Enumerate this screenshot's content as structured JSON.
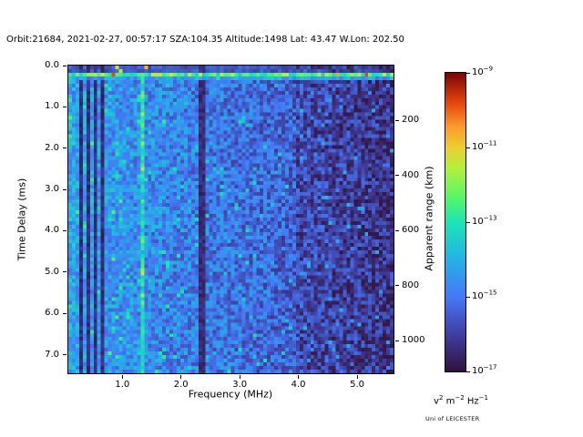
{
  "window": {
    "background": "#ffffff"
  },
  "chart_data": {
    "type": "heatmap",
    "title": "Orbit:21684, 2021-02-27, 00:57:17 SZA:104.35 Altitude:1498 Lat: 43.47 W.Lon: 202.50",
    "xlabel": "Frequency (MHz)",
    "ylabel_left": "Time Delay (ms)",
    "ylabel_right": "Apparent range (km)",
    "x_range_mhz": [
      0.08,
      5.62
    ],
    "y_range_ms": [
      0.0,
      7.45
    ],
    "x_ticks_mhz": [
      1.0,
      2.0,
      3.0,
      4.0,
      5.0
    ],
    "y_ticks_ms": [
      0.0,
      1.0,
      2.0,
      3.0,
      4.0,
      5.0,
      6.0,
      7.0
    ],
    "right_axis": {
      "ticks_km": [
        200,
        400,
        600,
        800,
        1000
      ],
      "km_per_ms": 150
    },
    "colorbar": {
      "scale": "log",
      "min": "1e-17",
      "max": "1e-9",
      "tick_exponents": [
        -9,
        -11,
        -13,
        -15,
        -17
      ],
      "unit_segments": [
        {
          "t": "v"
        },
        {
          "sup": "2"
        },
        {
          "t": " m"
        },
        {
          "sup": "−2"
        },
        {
          "t": " Hz"
        },
        {
          "sup": "−1"
        }
      ],
      "colormap": "turbo",
      "colormap_stops": [
        [
          0.0,
          "#30123b"
        ],
        [
          0.12,
          "#3f3d9c"
        ],
        [
          0.25,
          "#4479f7"
        ],
        [
          0.38,
          "#23b4e3"
        ],
        [
          0.5,
          "#1be5b5"
        ],
        [
          0.58,
          "#55f56a"
        ],
        [
          0.68,
          "#b4f03b"
        ],
        [
          0.75,
          "#e9cf33"
        ],
        [
          0.82,
          "#fb9b2e"
        ],
        [
          0.9,
          "#e4460b"
        ],
        [
          1.0,
          "#7a0403"
        ]
      ]
    },
    "heatmap": {
      "nx": 90,
      "ny": 85,
      "seed": 7,
      "description": "Radar-sounder ionogram noise speckle: blue speckle brighter at low frequency, darker navy above ~4 MHz; bright cyan horizontal band near 0.22 ms delay; dark vertical interference lines near 0.28, 0.38, 0.54, 0.66 and 2.38 MHz; bright vertical line at 1.35 MHz",
      "base_level": 0.34,
      "freq_fade": 0.2,
      "noise_amp": 0.22,
      "bright_band_rows": [
        2
      ],
      "dark_lines_mhz": [
        {
          "f": 0.28,
          "w": 0.06
        },
        {
          "f": 0.38,
          "w": 0.05
        },
        {
          "f": 0.54,
          "w": 0.05
        },
        {
          "f": 0.66,
          "w": 0.05
        },
        {
          "f": 2.38,
          "w": 0.12
        }
      ],
      "bright_lines_mhz": [
        {
          "f": 1.35,
          "w": 0.07
        }
      ]
    }
  },
  "branding": {
    "credit": "Uni of LEICESTER"
  }
}
